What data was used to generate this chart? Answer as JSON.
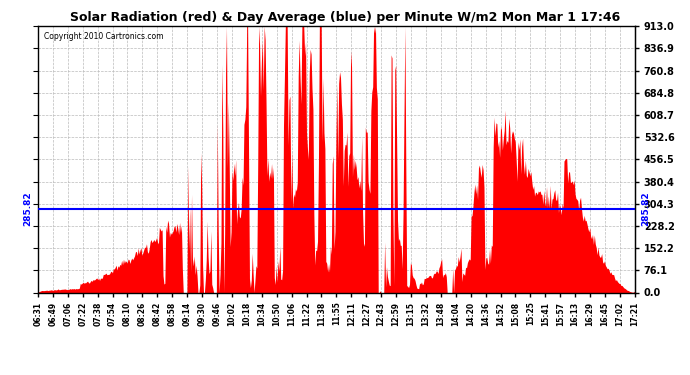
{
  "title": "Solar Radiation (red) & Day Average (blue) per Minute W/m2 Mon Mar 1 17:46",
  "copyright": "Copyright 2010 Cartronics.com",
  "average_value": 285.82,
  "ymin": 0.0,
  "ymax": 913.0,
  "yticks": [
    0.0,
    76.1,
    152.2,
    228.2,
    304.3,
    380.4,
    456.5,
    532.6,
    608.7,
    684.8,
    760.8,
    836.9,
    913.0
  ],
  "fill_color": "#FF0000",
  "line_color": "#0000FF",
  "background_color": "#FFFFFF",
  "grid_color": "#BBBBBB",
  "avg_label": "285.82",
  "xtick_labels": [
    "06:31",
    "06:49",
    "07:06",
    "07:22",
    "07:38",
    "07:54",
    "08:10",
    "08:26",
    "08:42",
    "08:58",
    "09:14",
    "09:30",
    "09:46",
    "10:02",
    "10:18",
    "10:34",
    "10:50",
    "11:06",
    "11:22",
    "11:38",
    "11:55",
    "12:11",
    "12:27",
    "12:43",
    "12:59",
    "13:15",
    "13:32",
    "13:48",
    "14:04",
    "14:20",
    "14:36",
    "14:52",
    "15:08",
    "15:25",
    "15:41",
    "15:57",
    "16:13",
    "16:29",
    "16:45",
    "17:02",
    "17:21"
  ],
  "num_points": 650
}
